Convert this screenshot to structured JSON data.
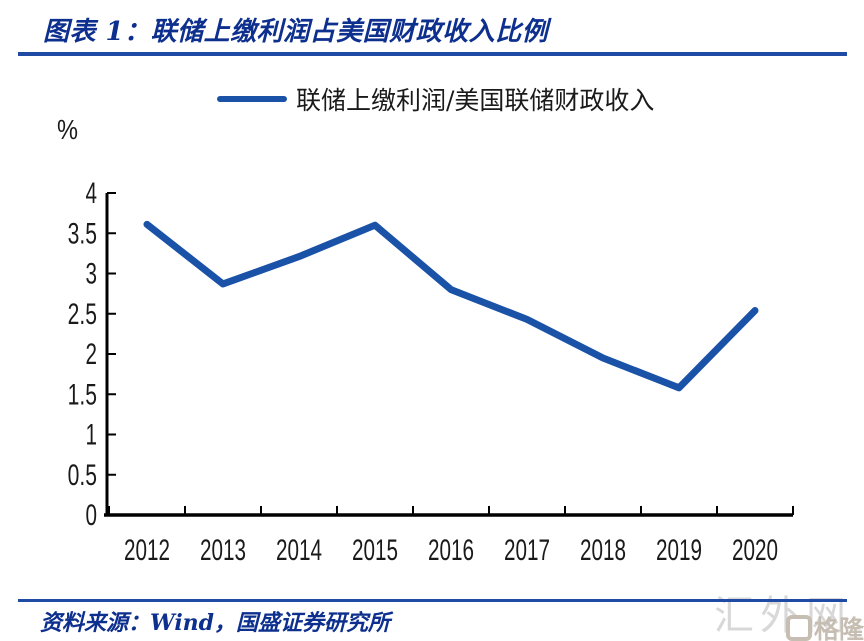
{
  "header": {
    "title": "图表 1：联储上缴利润占美国财政收入比例"
  },
  "footer": {
    "source": "资料来源：Wind，国盛证券研究所"
  },
  "watermarks": {
    "large": "汇外网",
    "small": "格隆汇"
  },
  "colors": {
    "brand_navy": "#0D2F8E",
    "rule_blue": "#1F4BA5",
    "line_blue": "#1A52A8",
    "axis_black": "#000000",
    "text_black": "#1A1A1A",
    "watermark_large_gray": "#D8D8D8",
    "watermark_small_gray": "#C6BEB2"
  },
  "chart_data": {
    "type": "line",
    "title": "联储上缴利润占美国财政收入比例",
    "unit_label": "%",
    "legend": [
      "联储上缴利润/美国联储财政收入"
    ],
    "legend_position": "top-center",
    "categories": [
      "2012",
      "2013",
      "2014",
      "2015",
      "2016",
      "2017",
      "2018",
      "2019",
      "2020"
    ],
    "series": [
      {
        "name": "联储上缴利润/美国联储财政收入",
        "values": [
          3.61,
          2.87,
          3.21,
          3.6,
          2.8,
          2.43,
          1.95,
          1.58,
          2.54
        ]
      }
    ],
    "xlabel": "",
    "ylabel": "%",
    "ylim": [
      0,
      4
    ],
    "yticks": [
      0,
      0.5,
      1,
      1.5,
      2,
      2.5,
      3,
      3.5,
      4
    ],
    "grid": false
  }
}
